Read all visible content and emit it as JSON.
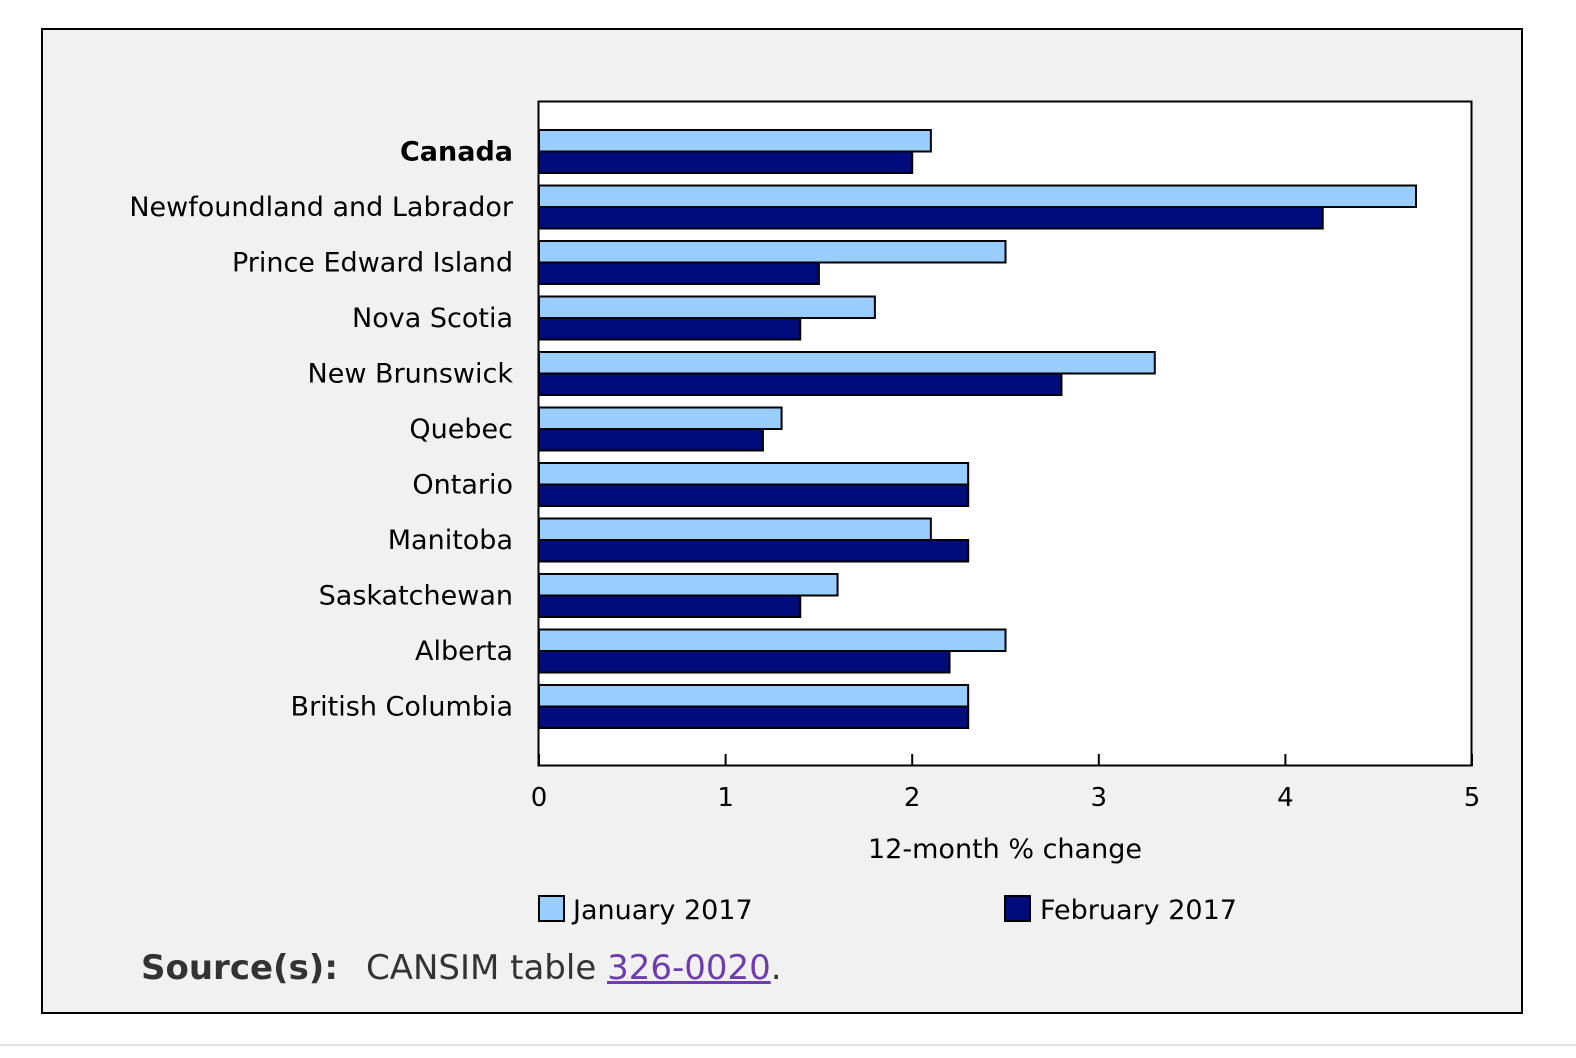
{
  "colors": {
    "january": "#99ccff",
    "february": "#000c7c",
    "bar_stroke": "#000000",
    "figure_background": "#f1f1f1",
    "plot_background": "#ffffff",
    "link": "#6f3cb0"
  },
  "chart_data": {
    "type": "bar",
    "orientation": "horizontal",
    "categories": [
      "Canada",
      "Newfoundland and Labrador",
      "Prince Edward Island",
      "Nova Scotia",
      "New Brunswick",
      "Quebec",
      "Ontario",
      "Manitoba",
      "Saskatchewan",
      "Alberta",
      "British Columbia"
    ],
    "bold_categories": [
      "Canada"
    ],
    "series": [
      {
        "name": "January 2017",
        "values": [
          2.1,
          4.7,
          2.5,
          1.8,
          3.3,
          1.3,
          2.3,
          2.1,
          1.6,
          2.5,
          2.3
        ]
      },
      {
        "name": "February 2017",
        "values": [
          2.0,
          4.2,
          1.5,
          1.4,
          2.8,
          1.2,
          2.3,
          2.3,
          1.4,
          2.2,
          2.3
        ]
      }
    ],
    "xlabel": "12-month % change",
    "ylabel": "",
    "xlim": [
      0,
      5
    ],
    "xticks": [
      0,
      1,
      2,
      3,
      4,
      5
    ],
    "grid": false,
    "legend_position": "bottom"
  },
  "source": {
    "label": "Source(s):",
    "text": "CANSIM table ",
    "link_text": "326-0020",
    "suffix": "."
  }
}
